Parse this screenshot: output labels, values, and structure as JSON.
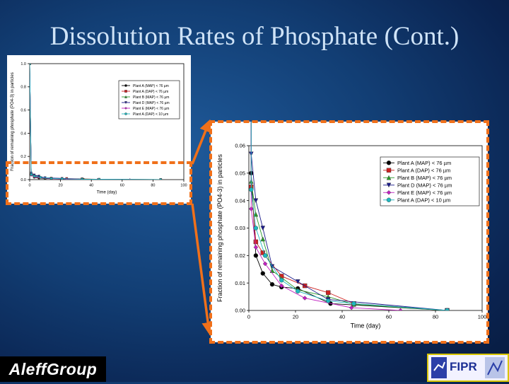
{
  "slide": {
    "title": "Dissolution Rates of Phosphate (Cont.)"
  },
  "logos": {
    "left": "Aleff Group",
    "right": "FIPR"
  },
  "colors": {
    "accent": "#f0701a",
    "title": "#cfe3f7"
  },
  "chart_data": [
    {
      "type": "line",
      "xlabel": "Time (day)",
      "ylabel": "Fraction of remaining phosphate (PO4-3) in particles",
      "xlim": [
        0,
        100
      ],
      "ylim": [
        0,
        1.0
      ],
      "x_ticks": [
        "0",
        "20",
        "40",
        "60",
        "80",
        "100"
      ],
      "y_ticks": [
        "0.0",
        "0.2",
        "0.4",
        "0.6",
        "0.8",
        "1.0"
      ],
      "series": [
        {
          "name": "Plant A (MAP) < 76 µm",
          "color": "#000000",
          "marker": "circle",
          "x": [
            0,
            1,
            3,
            6,
            10,
            14,
            21,
            35,
            85
          ],
          "y": [
            1.0,
            0.05,
            0.02,
            0.0135,
            0.0095,
            0.0085,
            0.008,
            0.0025,
            0.0
          ]
        },
        {
          "name": "Plant A (DAP) < 76 µm",
          "color": "#cc2222",
          "marker": "square",
          "x": [
            0,
            1,
            3,
            6,
            14,
            24,
            34,
            45,
            85
          ],
          "y": [
            1.0,
            0.045,
            0.025,
            0.021,
            0.0125,
            0.009,
            0.0065,
            0.0025,
            0.0
          ]
        },
        {
          "name": "Plant B (MAP) < 76 µm",
          "color": "#2a9a2a",
          "marker": "triangle-up",
          "x": [
            0,
            1,
            3,
            6,
            10,
            21,
            34,
            45,
            85
          ],
          "y": [
            1.0,
            0.047,
            0.035,
            0.026,
            0.0145,
            0.0075,
            0.005,
            0.0022,
            0.0
          ]
        },
        {
          "name": "Plant D (MAP) < 76 µm",
          "color": "#1a1a8a",
          "marker": "triangle-down",
          "x": [
            0,
            1,
            3,
            6,
            10,
            21,
            34,
            85
          ],
          "y": [
            1.0,
            0.057,
            0.04,
            0.03,
            0.016,
            0.0105,
            0.004,
            0.0
          ]
        },
        {
          "name": "Plant E (MAP) < 76 µm",
          "color": "#c020c0",
          "marker": "diamond",
          "x": [
            0,
            1,
            3,
            7,
            14,
            24,
            44,
            65
          ],
          "y": [
            1.0,
            0.037,
            0.023,
            0.017,
            0.009,
            0.0045,
            0.001,
            0.0
          ]
        },
        {
          "name": "Plant A (DAP) < 10 µm",
          "color": "#20b8c0",
          "marker": "circle",
          "x": [
            0,
            1,
            3,
            7,
            14,
            21,
            34,
            45,
            85
          ],
          "y": [
            1.0,
            0.044,
            0.03,
            0.02,
            0.011,
            0.007,
            0.0035,
            0.0025,
            0.0
          ]
        }
      ]
    },
    {
      "type": "line",
      "xlabel": "Time (day)",
      "ylabel": "Fraction of remaining phosphate (PO4-3) in particles",
      "xlim": [
        0,
        100
      ],
      "ylim": [
        0,
        0.06
      ],
      "x_ticks": [
        "0",
        "20",
        "40",
        "60",
        "80",
        "100"
      ],
      "y_ticks": [
        "0.00",
        "0.01",
        "0.02",
        "0.03",
        "0.04",
        "0.05",
        "0.06"
      ],
      "series_ref": "same as small chart"
    }
  ]
}
